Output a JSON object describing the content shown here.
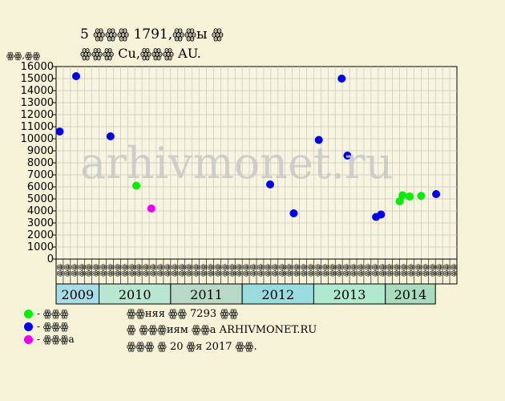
{
  "header": {
    "title_line1": "5 ꙮꙮꙮ 1791,ꙮꙮы ꙮ",
    "title_line2": "ꙮꙮꙮ Cu,ꙮꙮꙮ AU.",
    "y_unit": "ꙮꙮ,ꙮꙮ"
  },
  "watermark": "arhivmonet.ru",
  "legend": [
    {
      "label": "- ꙮꙮꙮ",
      "color": "#00ee00"
    },
    {
      "label": "- ꙮꙮꙮ",
      "color": "#0000ee"
    },
    {
      "label": "- ꙮꙮꙮa",
      "color": "#ee00ee"
    }
  ],
  "notes": {
    "line1": "ꙮꙮняя ꙮꙮ 7293 ꙮꙮ",
    "line2": "ꙮ ꙮꙮꙮиям ꙮꙮa ARHIVMONET.RU",
    "line3": "ꙮꙮꙮ ꙮ 20 ꙮя 2017 ꙮꙮ."
  },
  "chart_data": {
    "type": "scatter",
    "ylim": [
      0,
      16000
    ],
    "y_ticks": [
      0,
      1000,
      2000,
      3000,
      4000,
      5000,
      6000,
      7000,
      8000,
      9000,
      10000,
      11000,
      12000,
      13000,
      14000,
      15000,
      16000
    ],
    "grid": true,
    "month_labels": [
      "ꙮꙮ",
      "ꙮꙮ",
      "ꙮꙮ",
      "ꙮꙮ",
      "ꙮꙮ",
      "ꙮꙮ",
      "ꙮꙮ",
      "ꙮꙮ",
      "ꙮꙮ",
      "ꙮꙮ",
      "ꙮꙮ",
      "ꙮꙮ",
      "ꙮꙮ",
      "ꙮꙮ",
      "ꙮꙮ",
      "ꙮꙮ",
      "ꙮꙮ",
      "ꙮꙮ",
      "ꙮꙮ",
      "ꙮꙮ",
      "ꙮꙮ",
      "ꙮꙮ",
      "ꙮꙮ",
      "ꙮꙮ",
      "ꙮꙮ",
      "ꙮꙮ",
      "ꙮꙮ",
      "ꙮꙮ",
      "ꙮꙮ",
      "ꙮꙮ",
      "ꙮꙮ",
      "ꙮꙮ",
      "ꙮꙮ",
      "ꙮꙮ",
      "ꙮꙮ",
      "ꙮꙮ",
      "ꙮꙮ",
      "ꙮꙮ",
      "ꙮꙮ",
      "ꙮꙮ",
      "ꙮꙮ",
      "ꙮꙮ",
      "ꙮꙮ",
      "ꙮꙮ",
      "ꙮꙮ",
      "ꙮꙮ",
      "ꙮꙮ",
      "ꙮꙮ",
      "ꙮꙮ",
      "ꙮꙮ",
      "ꙮꙮ",
      "ꙮꙮ",
      "ꙮꙮ",
      "ꙮꙮ",
      "ꙮꙮ",
      "ꙮꙮ"
    ],
    "years": [
      {
        "label": "2009",
        "start": 0,
        "span": 6,
        "color": "#a8dde8"
      },
      {
        "label": "2010",
        "start": 6,
        "span": 10,
        "color": "#b8e6d2"
      },
      {
        "label": "2011",
        "start": 16,
        "span": 10,
        "color": "#b8d8c8"
      },
      {
        "label": "2012",
        "start": 26,
        "span": 10,
        "color": "#98dce0"
      },
      {
        "label": "2013",
        "start": 36,
        "span": 10,
        "color": "#b0e8d0"
      },
      {
        "label": "2014",
        "start": 46,
        "span": 7,
        "color": "#a8dcbc"
      }
    ],
    "series": [
      {
        "color": "#00ee00",
        "points": [
          [
            10.7,
            6100
          ],
          [
            47.5,
            4800
          ],
          [
            47.9,
            5300
          ],
          [
            48.9,
            5200
          ],
          [
            50.5,
            5250
          ]
        ]
      },
      {
        "color": "#0000ee",
        "points": [
          [
            0,
            10600
          ],
          [
            2.3,
            15200
          ],
          [
            7.1,
            10200
          ],
          [
            29.4,
            6200
          ],
          [
            32.7,
            3800
          ],
          [
            36.2,
            9900
          ],
          [
            39.4,
            15000
          ],
          [
            40.2,
            8600
          ],
          [
            44.2,
            3500
          ],
          [
            44.9,
            3700
          ],
          [
            52.6,
            5400
          ]
        ]
      },
      {
        "color": "#ee00ee",
        "points": [
          [
            12.8,
            4200
          ]
        ]
      }
    ]
  }
}
